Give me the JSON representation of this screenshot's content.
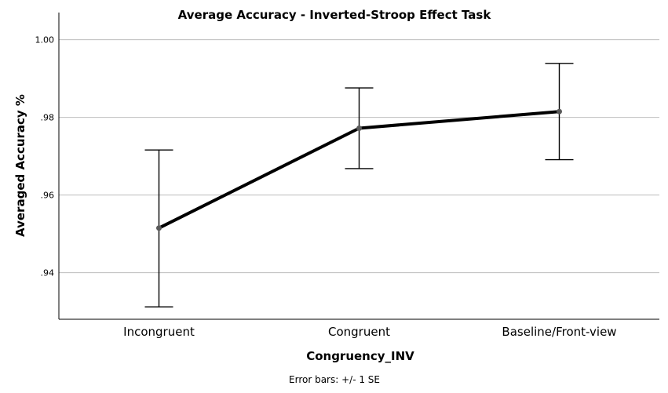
{
  "chart_data": {
    "type": "line",
    "title": "Average Accuracy - Inverted-Stroop Effect Task",
    "xlabel": "Congruency_INV",
    "ylabel": "Averaged Accuracy %",
    "categories": [
      "Incongruent",
      "Congruent",
      "Baseline/Front-view"
    ],
    "series": [
      {
        "values": [
          0.9515,
          0.9772,
          0.9815
        ],
        "error_low": [
          0.9312,
          0.9668,
          0.9691
        ],
        "error_high": [
          0.9716,
          0.9876,
          0.9939
        ]
      }
    ],
    "ylim": [
      0.928,
      1.007
    ],
    "yticks": [
      0.94,
      0.96,
      0.98,
      1.0
    ],
    "ytick_labels": [
      ".94",
      ".96",
      ".98",
      "1.00"
    ],
    "grid": true,
    "footnote": "Error bars: +/- 1 SE",
    "colors": {
      "line": "#000000",
      "point": "#5a5a5a",
      "grid": "#bdbdbd"
    }
  }
}
